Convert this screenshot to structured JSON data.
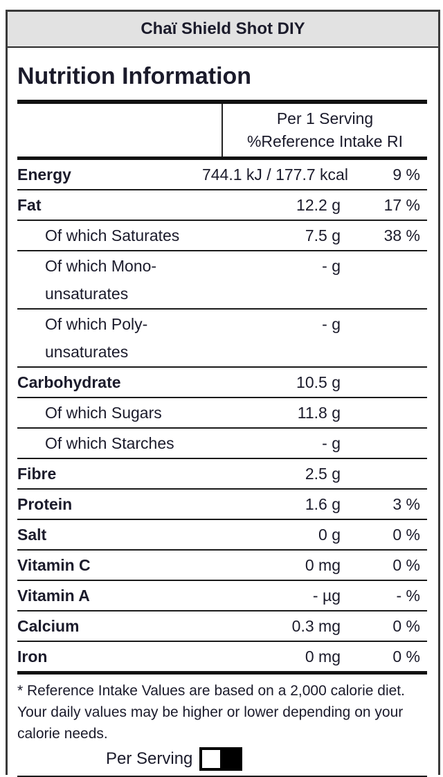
{
  "header": {
    "product_name": "Chaï Shield Shot DIY"
  },
  "title": "Nutrition Information",
  "table": {
    "col_header": {
      "line1": "Per 1 Serving",
      "line2": "%Reference Intake RI"
    },
    "rows": [
      {
        "label": "Energy",
        "value": "744.1 kJ / 177.7 kcal",
        "pct": "9 %",
        "bold": true,
        "indent": false
      },
      {
        "label": "Fat",
        "value": "12.2 g",
        "pct": "17 %",
        "bold": true,
        "indent": false
      },
      {
        "label": "Of which Saturates",
        "value": "7.5 g",
        "pct": "38 %",
        "bold": false,
        "indent": true
      },
      {
        "label": "Of which Mono-unsaturates",
        "value": "- g",
        "pct": "",
        "bold": false,
        "indent": true
      },
      {
        "label": "Of which Poly-unsaturates",
        "value": "- g",
        "pct": "",
        "bold": false,
        "indent": true
      },
      {
        "label": "Carbohydrate",
        "value": "10.5 g",
        "pct": "",
        "bold": true,
        "indent": false
      },
      {
        "label": "Of which Sugars",
        "value": "11.8 g",
        "pct": "",
        "bold": false,
        "indent": true
      },
      {
        "label": "Of which Starches",
        "value": "- g",
        "pct": "",
        "bold": false,
        "indent": true
      },
      {
        "label": "Fibre",
        "value": "2.5 g",
        "pct": "",
        "bold": true,
        "indent": false
      },
      {
        "label": "Protein",
        "value": "1.6 g",
        "pct": "3 %",
        "bold": true,
        "indent": false
      },
      {
        "label": "Salt",
        "value": "0 g",
        "pct": "0 %",
        "bold": true,
        "indent": false
      },
      {
        "label": "Vitamin C",
        "value": "0 mg",
        "pct": "0 %",
        "bold": true,
        "indent": false
      },
      {
        "label": "Vitamin A",
        "value": "- µg",
        "pct": "- %",
        "bold": true,
        "indent": false
      },
      {
        "label": "Calcium",
        "value": "0.3 mg",
        "pct": "0 %",
        "bold": true,
        "indent": false
      },
      {
        "label": "Iron",
        "value": "0 mg",
        "pct": "0 %",
        "bold": true,
        "indent": false
      }
    ]
  },
  "footnote": {
    "lines": [
      "* Reference Intake Values are based on a 2,000 calorie diet.",
      "Your daily values may be higher or lower depending on your",
      "calorie needs."
    ]
  },
  "serving_toggle": {
    "label": "Per Serving",
    "knob_position": "left"
  },
  "colors": {
    "band_background": "#e2e2e2",
    "text": "#1b1b2b",
    "rule": "#111111",
    "toggle_fill": "#000000",
    "toggle_knob": "#ffffff"
  }
}
